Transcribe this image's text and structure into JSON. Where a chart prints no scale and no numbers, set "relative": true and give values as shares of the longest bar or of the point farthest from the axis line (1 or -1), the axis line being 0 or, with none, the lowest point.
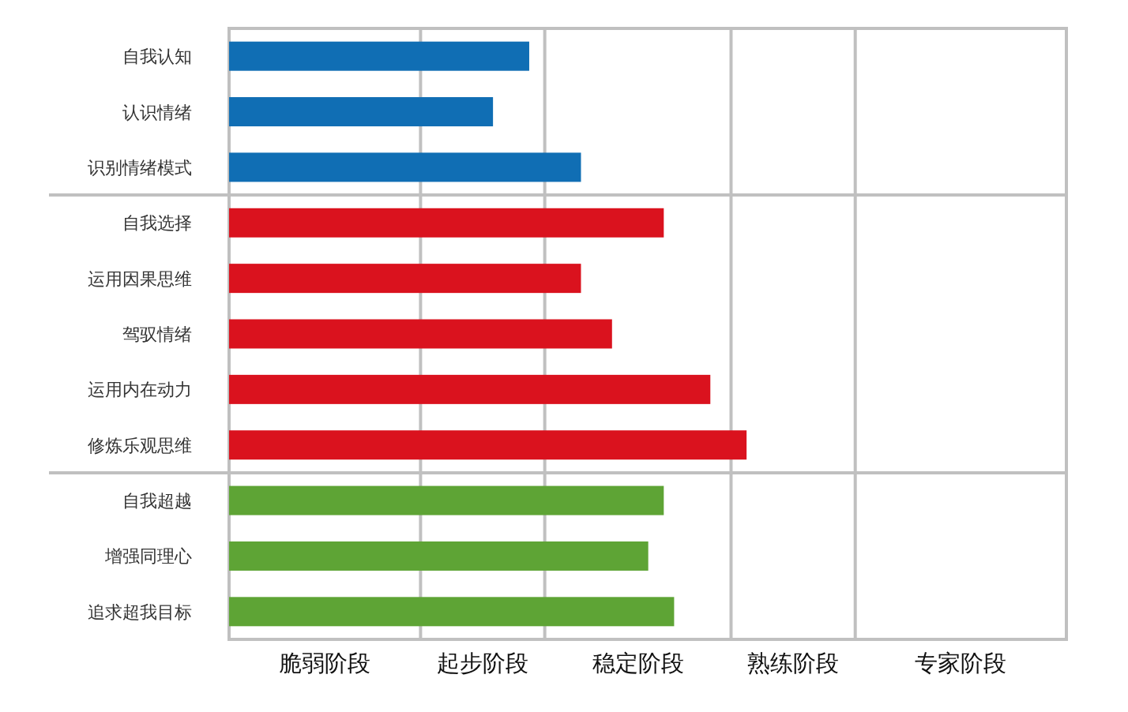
{
  "chart_data": {
    "type": "bar",
    "orientation": "horizontal",
    "relative": true,
    "categories": [
      "自我认知",
      "认识情绪",
      "识别情绪模式",
      "自我选择",
      "运用因果思维",
      "驾驭情绪",
      "运用内在动力",
      "修炼乐观思维",
      "自我超越",
      "增强同理心",
      "追求超我目标"
    ],
    "values": [
      0.58,
      0.51,
      0.68,
      0.84,
      0.68,
      0.74,
      0.93,
      1.0,
      0.84,
      0.81,
      0.86
    ],
    "colors": [
      "#106eb4",
      "#106eb4",
      "#106eb4",
      "#da121e",
      "#da121e",
      "#da121e",
      "#da121e",
      "#da121e",
      "#5ea435",
      "#5ea435",
      "#5ea435"
    ],
    "ref_lines": [
      {
        "axis": "x",
        "value": 0.37,
        "color": "#c0c0c0"
      },
      {
        "axis": "x",
        "value": 0.61,
        "color": "#c0c0c0"
      },
      {
        "axis": "x",
        "value": 0.97,
        "color": "#c0c0c0"
      },
      {
        "axis": "x",
        "value": 1.21,
        "color": "#c0c0c0"
      }
    ],
    "annotations": [
      "脆弱阶段",
      "起步阶段",
      "稳定阶段",
      "熟练阶段",
      "专家阶段"
    ]
  }
}
